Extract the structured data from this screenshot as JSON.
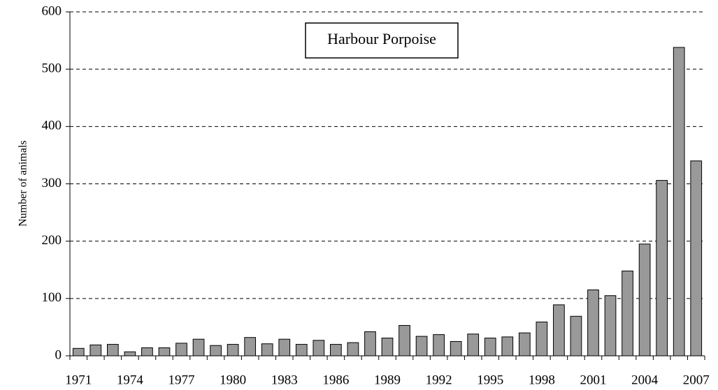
{
  "chart_data": {
    "type": "bar",
    "annotation": "Harbour Porpoise",
    "y_label": "Number of animals",
    "categories": [
      "1971",
      null,
      null,
      "1974",
      null,
      null,
      "1977",
      null,
      null,
      "1980",
      null,
      null,
      "1983",
      null,
      null,
      "1986",
      null,
      null,
      "1989",
      null,
      null,
      "1992",
      null,
      null,
      "1995",
      null,
      null,
      "1998",
      null,
      null,
      "2001",
      null,
      null,
      "2004",
      null,
      null,
      "2007"
    ],
    "values": [
      13,
      19,
      20,
      7,
      14,
      14,
      22,
      29,
      18,
      20,
      32,
      21,
      29,
      20,
      27,
      20,
      23,
      42,
      31,
      53,
      34,
      37,
      25,
      38,
      31,
      33,
      40,
      59,
      89,
      69,
      115,
      105,
      148,
      195,
      306,
      538,
      340
    ],
    "color": "#999999",
    "ylim": [
      0,
      600
    ],
    "yticks": [
      0,
      100,
      200,
      300,
      400,
      500,
      600
    ],
    "grid": true
  }
}
